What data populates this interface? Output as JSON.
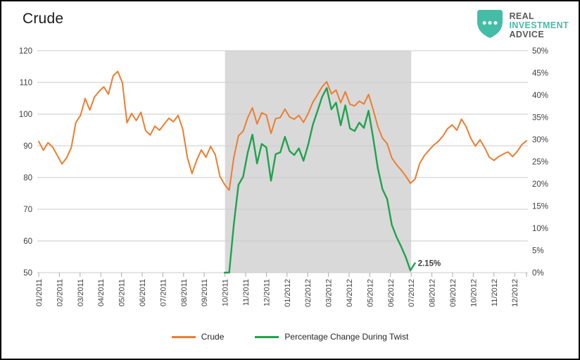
{
  "header": {
    "title": "Crude"
  },
  "logo": {
    "line1": "REAL",
    "line2": "INVESTMENT",
    "line3": "ADVICE",
    "shield_color": "#45BCA8",
    "accent_color": "#43BCA9"
  },
  "legend": [
    {
      "label": "Crude",
      "color": "#ED7D31"
    },
    {
      "label": "Percentage Change During Twist",
      "color": "#1FA24E"
    }
  ],
  "chart_data": {
    "type": "line",
    "title": "Crude",
    "x_tick_labels": [
      "01/2011",
      "02/2011",
      "03/2011",
      "04/2011",
      "05/2011",
      "06/2011",
      "07/2011",
      "08/2011",
      "09/2011",
      "10/2011",
      "11/2011",
      "12/2011",
      "01/2012",
      "02/2012",
      "03/2012",
      "04/2012",
      "05/2012",
      "06/2012",
      "07/2012",
      "08/2012",
      "09/2012",
      "10/2012",
      "11/2012",
      "12/2012"
    ],
    "left_axis": {
      "ticks": [
        120,
        110,
        100,
        90,
        80,
        70,
        60,
        50
      ],
      "range": [
        50,
        120
      ]
    },
    "right_axis": {
      "ticks": [
        "50%",
        "45%",
        "40%",
        "35%",
        "30%",
        "25%",
        "20%",
        "15%",
        "10%",
        "5%",
        "0%"
      ],
      "range": [
        0,
        50
      ]
    },
    "shaded_region": {
      "from_month_index": 9,
      "to_month_index": 18,
      "from_label": "10/2011",
      "to_label": "07/2012",
      "color": "#D9D9D9"
    },
    "grid": true,
    "legend_position": "bottom",
    "series": [
      {
        "name": "Crude",
        "axis": "left",
        "color": "#ED7D31",
        "width": 2,
        "x_start_month": 0,
        "x_step_month": 0.2245,
        "values": [
          91.4,
          88.6,
          91,
          89.6,
          87,
          84.3,
          86.2,
          89.4,
          97.4,
          99.6,
          104.9,
          101.3,
          105.4,
          107.2,
          108.6,
          106.3,
          112,
          113.5,
          110,
          97.3,
          100.2,
          98,
          100.6,
          94.8,
          93.4,
          96.2,
          94.9,
          96.8,
          98.7,
          97.6,
          99.6,
          95.3,
          86.3,
          81.3,
          85.4,
          88.7,
          86.4,
          89.8,
          87.2,
          80.4,
          77.8,
          76,
          86.3,
          93.2,
          94.6,
          98.9,
          102,
          96.9,
          100.4,
          99.7,
          93.9,
          98.6,
          98.9,
          101.6,
          99.1,
          98.4,
          99.6,
          97.4,
          100.2,
          103.7,
          106.1,
          108.6,
          110.2,
          106.4,
          107.6,
          103.6,
          107.1,
          103.1,
          102.6,
          104.1,
          103.2,
          106.2,
          101.4,
          96.1,
          92.4,
          90.7,
          86.2,
          84.1,
          82.4,
          80.5,
          78.2,
          79.5,
          84.4,
          86.9,
          88.6,
          90.2,
          91.4,
          93.1,
          95.4,
          96.6,
          94.9,
          98.4,
          96.1,
          92.4,
          89.9,
          91.9,
          89.4,
          86.4,
          85.4,
          86.6,
          87.4,
          88.1,
          86.6,
          88.2,
          90.4,
          91.6
        ]
      },
      {
        "name": "Percentage Change During Twist",
        "axis": "right",
        "color": "#1FA24E",
        "width": 2.4,
        "x_start_month": 8.98,
        "x_step_month": 0.2245,
        "values": [
          0,
          0,
          10.9,
          19.8,
          21.6,
          27.1,
          31.1,
          24.6,
          29,
          28.2,
          20.7,
          26.7,
          27.1,
          30.6,
          27.4,
          26.5,
          28,
          25.2,
          28.8,
          33.3,
          36.4,
          39.6,
          41.6,
          36.8,
          38.3,
          33.2,
          37.7,
          32.5,
          31.9,
          33.8,
          32.6,
          36.5,
          30.3,
          23.5,
          18.8,
          16.6,
          10.8,
          8.1,
          5.9,
          3.5,
          0.5,
          2.15
        ]
      }
    ],
    "annotation": {
      "text": "2.15%",
      "x_month": 18.32,
      "value_pct": 2.15
    }
  }
}
